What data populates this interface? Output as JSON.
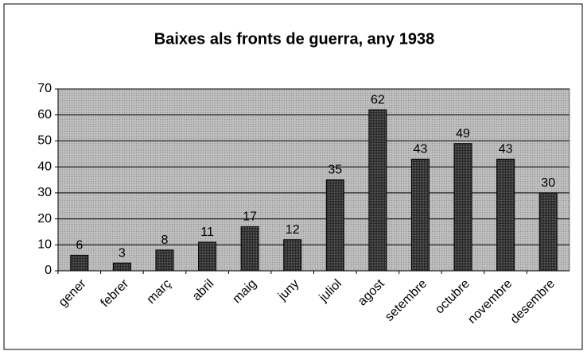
{
  "chart_data": {
    "type": "bar",
    "title": "Baixes als fronts de guerra, any 1938",
    "categories": [
      "gener",
      "febrer",
      "març",
      "abril",
      "maig",
      "juny",
      "juliol",
      "agost",
      "setembre",
      "octubre",
      "novembre",
      "desembre"
    ],
    "values": [
      6,
      3,
      8,
      11,
      17,
      12,
      35,
      62,
      43,
      49,
      43,
      30
    ],
    "color": "#3a3a3a",
    "ylim": [
      0,
      70
    ],
    "yticks": [
      0,
      10,
      20,
      30,
      40,
      50,
      60,
      70
    ],
    "grid": true
  }
}
